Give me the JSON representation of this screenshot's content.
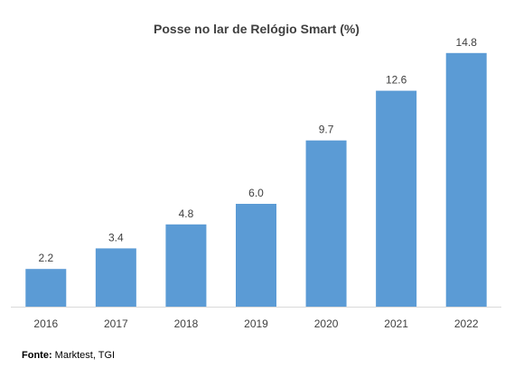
{
  "chart_data": {
    "type": "bar",
    "title": "Posse no lar de Relógio Smart (%)",
    "xlabel": "",
    "ylabel": "",
    "categories": [
      "2016",
      "2017",
      "2018",
      "2019",
      "2020",
      "2021",
      "2022"
    ],
    "values": [
      2.2,
      3.4,
      4.8,
      6.0,
      9.7,
      12.6,
      14.8
    ],
    "value_labels": [
      "2.2",
      "3.4",
      "4.8",
      "6.0",
      "9.7",
      "12.6",
      "14.8"
    ],
    "ylim": [
      0,
      15
    ],
    "grid": false,
    "legend": "none",
    "bar_color": "#5b9bd5",
    "axis_color": "#d9d9d9"
  },
  "source": {
    "prefix": "Fonte:",
    "text": " Marktest, TGI"
  }
}
